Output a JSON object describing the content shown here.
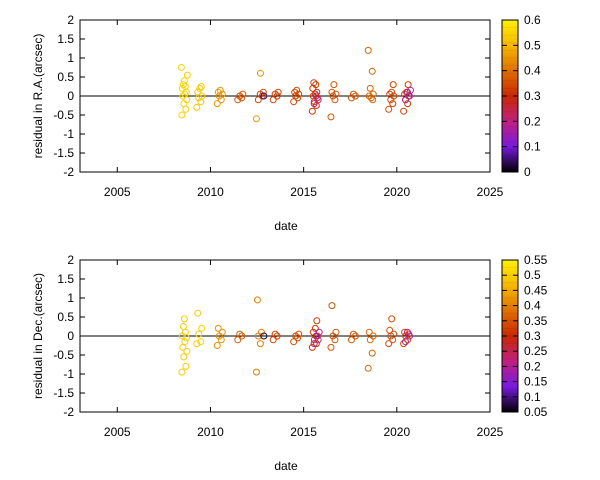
{
  "chart_data": [
    {
      "type": "scatter",
      "id": "ra",
      "xlabel": "date",
      "ylabel": "residual in R.A.(arcsec)",
      "xlim": [
        2003,
        2025
      ],
      "ylim": [
        -2,
        2
      ],
      "xticks": [
        2005,
        2010,
        2015,
        2020,
        2025
      ],
      "yticks": [
        -2,
        -1.5,
        -1,
        -0.5,
        0,
        0.5,
        1,
        1.5,
        2
      ],
      "zero_line": true,
      "grid": false,
      "marker": "open-circle",
      "colorbar": {
        "min": 0,
        "max": 0.6,
        "ticks": [
          0,
          0.1,
          0.2,
          0.3,
          0.4,
          0.5,
          0.6
        ],
        "palette": [
          "#000000",
          "#7a1ae0",
          "#c02080",
          "#c82800",
          "#e07000",
          "#f6b800",
          "#fff000"
        ]
      },
      "groups": [
        {
          "x": 2008.6,
          "c": 0.55,
          "y": [
            -0.5,
            -0.35,
            -0.2,
            -0.1,
            0.0,
            0.05,
            0.1,
            0.2,
            0.25,
            0.3,
            0.4,
            0.55,
            0.75
          ]
        },
        {
          "x": 2009.4,
          "c": 0.53,
          "y": [
            -0.3,
            -0.15,
            -0.05,
            0.0,
            0.1,
            0.2,
            0.25
          ]
        },
        {
          "x": 2010.5,
          "c": 0.45,
          "y": [
            -0.2,
            -0.1,
            0.0,
            0.05,
            0.1,
            0.15
          ]
        },
        {
          "x": 2011.6,
          "c": 0.36,
          "y": [
            -0.1,
            -0.05,
            0.0,
            0.05
          ]
        },
        {
          "x": 2012.6,
          "c": 0.45,
          "y": [
            -0.6,
            0.6
          ]
        },
        {
          "x": 2012.7,
          "c": 0.34,
          "y": [
            -0.1,
            0.0,
            0.05,
            0.1
          ]
        },
        {
          "x": 2013.0,
          "c": 0.05,
          "y": [
            0.0
          ]
        },
        {
          "x": 2013.5,
          "c": 0.33,
          "y": [
            -0.1,
            0.0,
            0.05,
            0.1
          ]
        },
        {
          "x": 2014.6,
          "c": 0.34,
          "y": [
            -0.15,
            -0.05,
            0.0,
            0.05,
            0.1,
            0.15
          ]
        },
        {
          "x": 2015.6,
          "c": 0.32,
          "y": [
            -0.4,
            -0.25,
            -0.15,
            -0.05,
            0.0,
            0.05,
            0.1,
            0.2,
            0.3,
            0.35
          ]
        },
        {
          "x": 2015.7,
          "c": 0.2,
          "y": [
            -0.2,
            -0.1,
            0.0
          ]
        },
        {
          "x": 2016.6,
          "c": 0.36,
          "y": [
            -0.55,
            -0.1,
            0.0,
            0.05,
            0.1,
            0.3
          ]
        },
        {
          "x": 2017.7,
          "c": 0.36,
          "y": [
            -0.05,
            0.0,
            0.05
          ]
        },
        {
          "x": 2018.6,
          "c": 0.38,
          "y": [
            1.2,
            0.65,
            0.2,
            0.05,
            0.0,
            -0.05,
            -0.1
          ]
        },
        {
          "x": 2019.7,
          "c": 0.34,
          "y": [
            -0.35,
            -0.2,
            -0.1,
            0.0,
            0.05,
            0.1,
            0.3
          ]
        },
        {
          "x": 2020.5,
          "c": 0.33,
          "y": [
            -0.4,
            -0.2,
            -0.1,
            0.0,
            0.05,
            0.1,
            0.3
          ]
        },
        {
          "x": 2020.6,
          "c": 0.18,
          "y": [
            -0.1,
            0.0,
            0.1,
            0.15
          ]
        }
      ]
    },
    {
      "type": "scatter",
      "id": "dec",
      "xlabel": "date",
      "ylabel": "residual in Dec.(arcsec)",
      "xlim": [
        2003,
        2025
      ],
      "ylim": [
        -2,
        2
      ],
      "xticks": [
        2005,
        2010,
        2015,
        2020,
        2025
      ],
      "yticks": [
        -2,
        -1.5,
        -1,
        -0.5,
        0,
        0.5,
        1,
        1.5,
        2
      ],
      "zero_line": true,
      "grid": false,
      "marker": "open-circle",
      "colorbar": {
        "min": 0.05,
        "max": 0.55,
        "ticks": [
          0.05,
          0.1,
          0.15,
          0.2,
          0.25,
          0.3,
          0.35,
          0.4,
          0.45,
          0.5,
          0.55
        ],
        "palette": [
          "#000000",
          "#7a1ae0",
          "#c02080",
          "#c82800",
          "#e07000",
          "#f6b800",
          "#fff000"
        ]
      },
      "groups": [
        {
          "x": 2008.6,
          "c": 0.5,
          "y": [
            -0.95,
            -0.8,
            -0.55,
            -0.4,
            -0.3,
            -0.15,
            -0.05,
            0.0,
            0.1,
            0.25,
            0.45
          ]
        },
        {
          "x": 2009.4,
          "c": 0.5,
          "y": [
            -0.2,
            -0.15,
            0.05,
            0.2,
            0.6
          ]
        },
        {
          "x": 2010.5,
          "c": 0.42,
          "y": [
            -0.25,
            -0.1,
            0.0,
            0.1,
            0.2
          ]
        },
        {
          "x": 2011.6,
          "c": 0.36,
          "y": [
            -0.1,
            0.0,
            0.05
          ]
        },
        {
          "x": 2012.6,
          "c": 0.4,
          "y": [
            -0.95,
            -0.2,
            0.0,
            0.1,
            0.95
          ]
        },
        {
          "x": 2013.0,
          "c": 0.07,
          "y": [
            0.0
          ]
        },
        {
          "x": 2013.5,
          "c": 0.33,
          "y": [
            -0.1,
            0.0,
            0.05
          ]
        },
        {
          "x": 2014.6,
          "c": 0.34,
          "y": [
            -0.15,
            -0.05,
            0.0,
            0.05
          ]
        },
        {
          "x": 2015.6,
          "c": 0.32,
          "y": [
            -0.3,
            -0.2,
            -0.1,
            0.0,
            0.1,
            0.2,
            0.4
          ]
        },
        {
          "x": 2015.7,
          "c": 0.2,
          "y": [
            -0.2,
            -0.1,
            0.0,
            0.1
          ]
        },
        {
          "x": 2016.6,
          "c": 0.35,
          "y": [
            -0.3,
            -0.1,
            0.0,
            0.1,
            0.8
          ]
        },
        {
          "x": 2017.7,
          "c": 0.35,
          "y": [
            -0.1,
            0.0,
            0.05
          ]
        },
        {
          "x": 2018.6,
          "c": 0.37,
          "y": [
            -0.85,
            -0.45,
            -0.1,
            0.0,
            0.1
          ]
        },
        {
          "x": 2019.7,
          "c": 0.34,
          "y": [
            -0.2,
            -0.1,
            0.0,
            0.05,
            0.15,
            0.45
          ]
        },
        {
          "x": 2020.5,
          "c": 0.33,
          "y": [
            -0.2,
            -0.1,
            0.0,
            0.05,
            0.1
          ]
        },
        {
          "x": 2020.6,
          "c": 0.2,
          "y": [
            -0.15,
            0.0,
            0.1
          ]
        }
      ]
    }
  ]
}
